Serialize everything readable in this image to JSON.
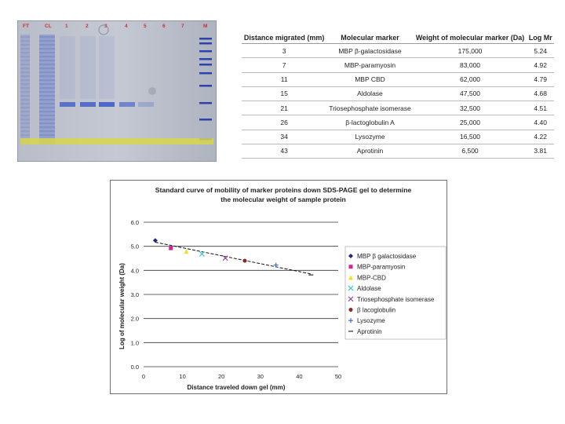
{
  "gel": {
    "lane_labels": [
      "FT",
      "CL",
      "1",
      "2",
      "3",
      "4",
      "5",
      "6",
      "7",
      "M"
    ],
    "colors": {
      "gel_bg": "#c5c9d3",
      "band_blue": "#3a57c8",
      "dye_front": "#d8d64c",
      "label_red": "#c83232"
    }
  },
  "table": {
    "headers": [
      "Distance migrated (mm)",
      "Molecular marker",
      "Weight of molecular marker (Da)",
      "Log Mr"
    ],
    "rows": [
      [
        "3",
        "MBP β-galactosidase",
        "175,000",
        "5.24"
      ],
      [
        "7",
        "MBP-paramyosin",
        "83,000",
        "4.92"
      ],
      [
        "11",
        "MBP CBD",
        "62,000",
        "4.79"
      ],
      [
        "15",
        "Aldolase",
        "47,500",
        "4.68"
      ],
      [
        "21",
        "Triosephosphate isomerase",
        "32,500",
        "4.51"
      ],
      [
        "26",
        "β-lactoglobulin A",
        "25,000",
        "4.40"
      ],
      [
        "34",
        "Lysozyme",
        "16,500",
        "4.22"
      ],
      [
        "43",
        "Aprotinin",
        "6,500",
        "3.81"
      ]
    ]
  },
  "chart_data": {
    "type": "scatter",
    "title_lines": [
      "Standard curve of mobility of marker proteins down SDS-PAGE gel to determine",
      "the molecular weight of sample protein"
    ],
    "xlabel": "Distance traveled down gel (mm)",
    "ylabel": "Log of molecular weight (Da)",
    "xlim": [
      0,
      50
    ],
    "ylim": [
      0,
      6
    ],
    "xticks": [
      "0",
      "10",
      "20",
      "30",
      "40",
      "50"
    ],
    "yticks": [
      "0.0",
      "1.0",
      "2.0",
      "3.0",
      "4.0",
      "5.0",
      "6.0"
    ],
    "grid": "horizontal",
    "legend_position": "right",
    "trendline": {
      "x": [
        3,
        43
      ],
      "y": [
        5.17,
        3.85
      ]
    },
    "series": [
      {
        "name": "MBP β galactosidase",
        "marker": "diamond",
        "color": "#1f2a7a",
        "x": [
          3
        ],
        "y": [
          5.24
        ]
      },
      {
        "name": "MBP-paramyosin",
        "marker": "square",
        "color": "#d6229b",
        "x": [
          7
        ],
        "y": [
          4.92
        ]
      },
      {
        "name": "MBP-CBD",
        "marker": "triangle",
        "color": "#f0e21f",
        "x": [
          11
        ],
        "y": [
          4.79
        ]
      },
      {
        "name": "Aldolase",
        "marker": "x",
        "color": "#3fc6d1",
        "x": [
          15
        ],
        "y": [
          4.68
        ]
      },
      {
        "name": "Triosephosphate isomerase",
        "marker": "x",
        "color": "#8a4fa3",
        "x": [
          21
        ],
        "y": [
          4.51
        ]
      },
      {
        "name": "β lacoglobulin",
        "marker": "circle",
        "color": "#8b2a1f",
        "x": [
          26
        ],
        "y": [
          4.4
        ]
      },
      {
        "name": "Lysozyme",
        "marker": "plus",
        "color": "#3b6fc4",
        "x": [
          34
        ],
        "y": [
          4.22
        ]
      },
      {
        "name": "Aprotinin",
        "marker": "dash",
        "color": "#555555",
        "x": [
          43
        ],
        "y": [
          3.81
        ]
      }
    ]
  }
}
